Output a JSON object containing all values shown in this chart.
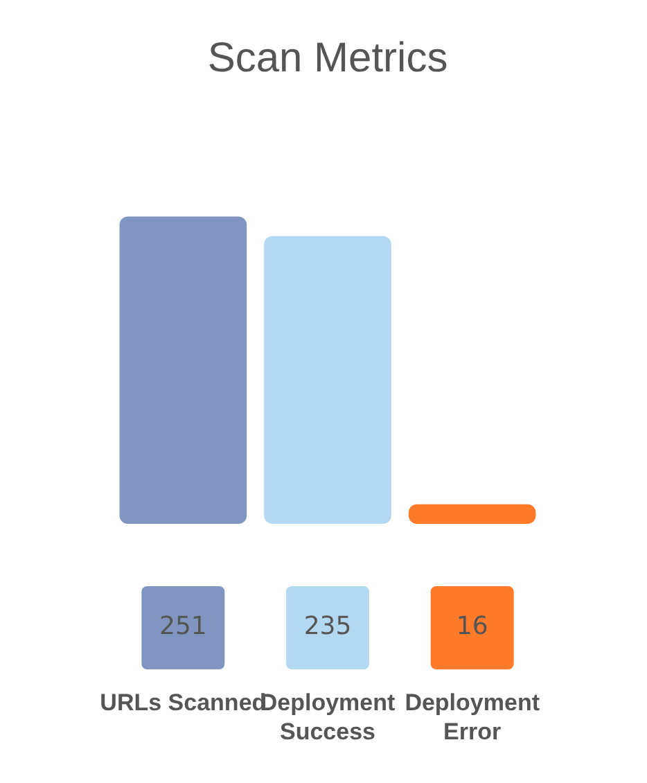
{
  "chart_data": {
    "type": "bar",
    "title": "Scan Metrics",
    "categories": [
      "URLs Scanned",
      "Deployment Success",
      "Deployment Error"
    ],
    "values": [
      251,
      235,
      16
    ],
    "colors": [
      "#8096c0",
      "#b3d9f2",
      "#ff7a2a"
    ],
    "data_labels": true,
    "grid": false,
    "legend": false
  }
}
